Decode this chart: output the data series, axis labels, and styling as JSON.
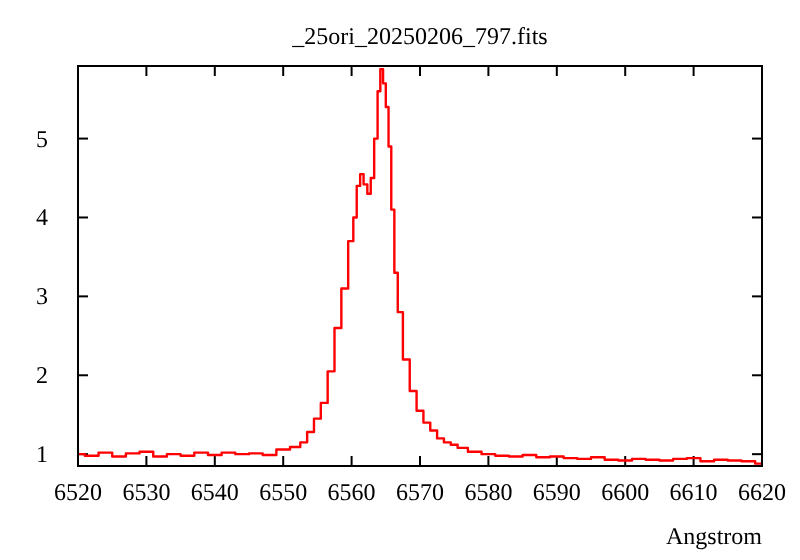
{
  "chart_data": {
    "type": "step",
    "title": "_25ori_20250206_797.fits",
    "xlabel": "Angstrom",
    "x": [
      6520,
      6522,
      6524,
      6526,
      6528,
      6530,
      6532,
      6534,
      6536,
      6538,
      6540,
      6542,
      6544,
      6546,
      6548,
      6550,
      6552,
      6553,
      6554,
      6555,
      6556,
      6557,
      6558,
      6559,
      6560,
      6560.5,
      6561,
      6561.5,
      6562,
      6562.6,
      6563,
      6563.6,
      6564,
      6564.4,
      6564.8,
      6565.2,
      6565.6,
      6566,
      6566.5,
      6567,
      6568,
      6569,
      6570,
      6571,
      6572,
      6573,
      6574,
      6575,
      6576,
      6578,
      6580,
      6582,
      6584,
      6586,
      6588,
      6590,
      6592,
      6594,
      6596,
      6598,
      6600,
      6602,
      6604,
      6606,
      6608,
      6610,
      6612,
      6614,
      6616,
      6618,
      6620
    ],
    "series": [
      {
        "color": "#ff0000",
        "values": [
          1.0,
          0.98,
          1.02,
          0.97,
          1.01,
          1.03,
          0.97,
          1.0,
          0.98,
          1.02,
          0.99,
          1.02,
          1.0,
          1.01,
          0.99,
          1.06,
          1.09,
          1.15,
          1.28,
          1.45,
          1.65,
          2.05,
          2.6,
          3.1,
          3.7,
          4.0,
          4.4,
          4.55,
          4.42,
          4.3,
          4.5,
          5.0,
          5.6,
          5.88,
          5.7,
          5.4,
          4.9,
          4.1,
          3.3,
          2.8,
          2.2,
          1.8,
          1.55,
          1.4,
          1.3,
          1.2,
          1.15,
          1.12,
          1.08,
          1.03,
          1.0,
          0.98,
          0.97,
          0.99,
          0.96,
          0.97,
          0.95,
          0.94,
          0.96,
          0.93,
          0.92,
          0.94,
          0.93,
          0.92,
          0.94,
          0.95,
          0.91,
          0.93,
          0.92,
          0.91,
          0.88
        ]
      }
    ],
    "xlim": [
      6520,
      6620
    ],
    "xticks": [
      6520,
      6530,
      6540,
      6550,
      6560,
      6570,
      6580,
      6590,
      6600,
      6610,
      6620
    ],
    "ylim": [
      0.85,
      5.92
    ],
    "yticks": [
      1,
      2,
      3,
      4,
      5
    ],
    "grid": false
  }
}
